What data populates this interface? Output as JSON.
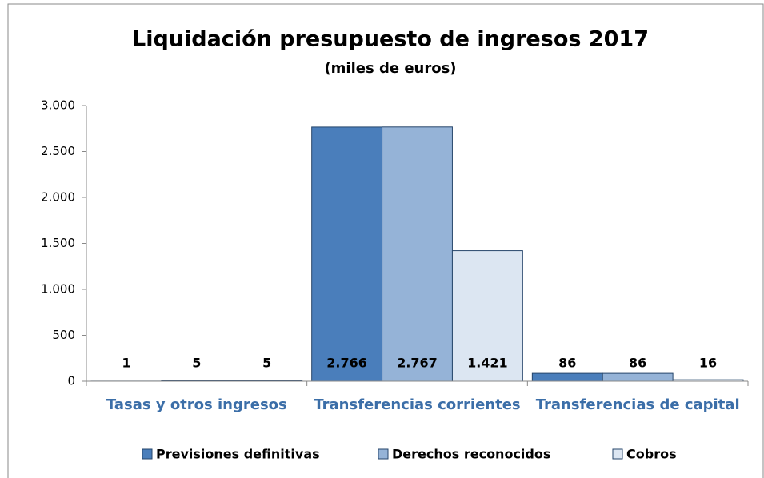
{
  "chart_data": {
    "type": "bar",
    "title": "Liquidación presupuesto de ingresos 2017",
    "subtitle": "(miles de euros)",
    "categories": [
      "Tasas y otros ingresos",
      "Transferencias corrientes",
      "Transferencias de capital"
    ],
    "series": [
      {
        "name": "Previsiones definitivas",
        "color": "#4a7ebb",
        "values": [
          1,
          2766,
          86
        ],
        "value_labels": [
          "1",
          "2.766",
          "86"
        ]
      },
      {
        "name": "Derechos reconocidos",
        "color": "#95b3d7",
        "values": [
          5,
          2767,
          86
        ],
        "value_labels": [
          "5",
          "2.767",
          "86"
        ]
      },
      {
        "name": "Cobros",
        "color": "#dce6f2",
        "values": [
          5,
          1421,
          16
        ],
        "value_labels": [
          "5",
          "1.421",
          "16"
        ]
      }
    ],
    "ylim": [
      0,
      3000
    ],
    "yticks": [
      0,
      500,
      {
        "value": 1000,
        "label": "1.000"
      },
      {
        "value": 1500,
        "label": "1.500"
      },
      {
        "value": 2000,
        "label": "2.000"
      },
      {
        "value": 2500,
        "label": "2.500"
      },
      {
        "value": 3000,
        "label": "3.000"
      }
    ],
    "grid": false,
    "legend": "bottom"
  }
}
